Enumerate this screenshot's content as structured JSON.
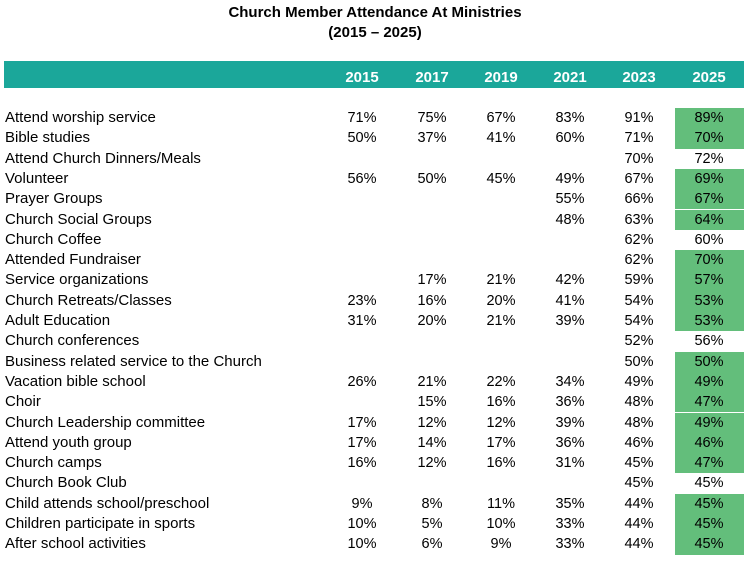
{
  "chart_data": {
    "type": "table",
    "title": "Church Member Attendance At Ministries",
    "subtitle": "(2015 – 2025)",
    "columns": [
      "2015",
      "2017",
      "2019",
      "2021",
      "2023",
      "2025"
    ],
    "highlight_color": "#63be7b",
    "header_color": "#1ba79a",
    "rows": [
      {
        "label": "Attend worship service",
        "values": [
          "71%",
          "75%",
          "67%",
          "83%",
          "91%",
          "89%"
        ],
        "highlight": true
      },
      {
        "label": "Bible studies",
        "values": [
          "50%",
          "37%",
          "41%",
          "60%",
          "71%",
          "70%"
        ],
        "highlight": true
      },
      {
        "label": "Attend Church Dinners/Meals",
        "values": [
          "",
          "",
          "",
          "",
          "70%",
          "72%"
        ],
        "highlight": false
      },
      {
        "label": "Volunteer",
        "values": [
          "56%",
          "50%",
          "45%",
          "49%",
          "67%",
          "69%"
        ],
        "highlight": true
      },
      {
        "label": "Prayer Groups",
        "values": [
          "",
          "",
          "",
          "55%",
          "66%",
          "67%"
        ],
        "highlight": true
      },
      {
        "label": "Church Social Groups",
        "values": [
          "",
          "",
          "",
          "48%",
          "63%",
          "64%"
        ],
        "highlight": true
      },
      {
        "label": "Church Coffee",
        "values": [
          "",
          "",
          "",
          "",
          "62%",
          "60%"
        ],
        "highlight": false
      },
      {
        "label": "Attended Fundraiser",
        "values": [
          "",
          "",
          "",
          "",
          "62%",
          "70%"
        ],
        "highlight": true
      },
      {
        "label": "Service organizations",
        "values": [
          "",
          "17%",
          "21%",
          "42%",
          "59%",
          "57%"
        ],
        "highlight": true
      },
      {
        "label": "Church Retreats/Classes",
        "values": [
          "23%",
          "16%",
          "20%",
          "41%",
          "54%",
          "53%"
        ],
        "highlight": true
      },
      {
        "label": "Adult  Education",
        "values": [
          "31%",
          "20%",
          "21%",
          "39%",
          "54%",
          "53%"
        ],
        "highlight": true
      },
      {
        "label": "Church conferences",
        "values": [
          "",
          "",
          "",
          "",
          "52%",
          "56%"
        ],
        "highlight": false
      },
      {
        "label": "Business related service to the Church",
        "values": [
          "",
          "",
          "",
          "",
          "50%",
          "50%"
        ],
        "highlight": true
      },
      {
        "label": "Vacation bible school",
        "values": [
          "26%",
          "21%",
          "22%",
          "34%",
          "49%",
          "49%"
        ],
        "highlight": true
      },
      {
        "label": "Choir",
        "values": [
          "",
          "15%",
          "16%",
          "36%",
          "48%",
          "47%"
        ],
        "highlight": true
      },
      {
        "label": "Church Leadership committee",
        "values": [
          "17%",
          "12%",
          "12%",
          "39%",
          "48%",
          "49%"
        ],
        "highlight": true
      },
      {
        "label": "Attend youth group",
        "values": [
          "17%",
          "14%",
          "17%",
          "36%",
          "46%",
          "46%"
        ],
        "highlight": true
      },
      {
        "label": "Church camps",
        "values": [
          "16%",
          "12%",
          "16%",
          "31%",
          "45%",
          "47%"
        ],
        "highlight": true
      },
      {
        "label": "Church Book Club",
        "values": [
          "",
          "",
          "",
          "",
          "45%",
          "45%"
        ],
        "highlight": false
      },
      {
        "label": "Child attends school/preschool",
        "values": [
          "9%",
          "8%",
          "11%",
          "35%",
          "44%",
          "45%"
        ],
        "highlight": true
      },
      {
        "label": "Children participate in sports",
        "values": [
          "10%",
          "5%",
          "10%",
          "33%",
          "44%",
          "45%"
        ],
        "highlight": true
      },
      {
        "label": "After school activities",
        "values": [
          "10%",
          "6%",
          "9%",
          "33%",
          "44%",
          "45%"
        ],
        "highlight": true
      }
    ]
  }
}
